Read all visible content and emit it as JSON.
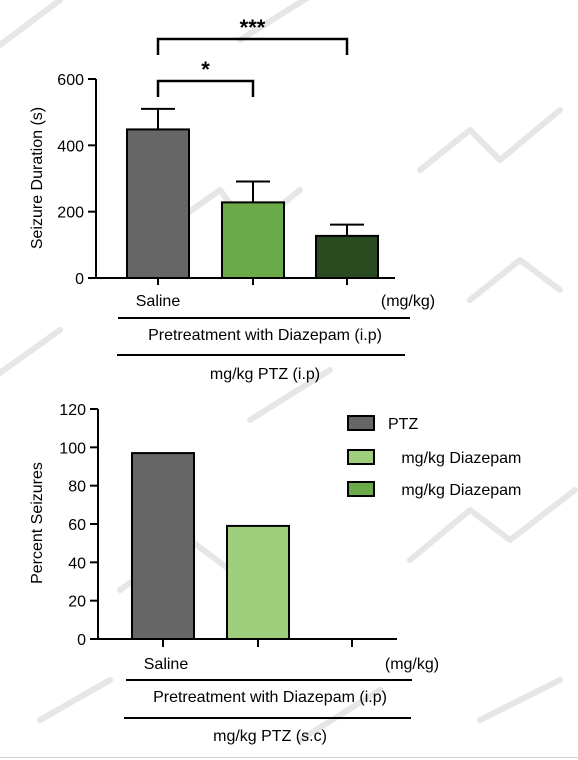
{
  "chart_data": [
    {
      "type": "bar",
      "ylabel": "Seizure Duration (s)",
      "ylim": [
        0,
        600
      ],
      "yticks": [
        0,
        200,
        400,
        600
      ],
      "categories": [
        "Saline",
        "",
        ""
      ],
      "values": [
        448,
        228,
        127
      ],
      "errors": [
        62,
        63,
        34
      ],
      "colors": [
        "#666666",
        "#6aaa48",
        "#2a4a1f"
      ],
      "category_note": "(mg/kg)",
      "group_label": "Pretreatment with Diazepam (i.p)",
      "outer_label": "mg/kg PTZ (i.p)",
      "significance": [
        {
          "from": 0,
          "to": 1,
          "label": "*"
        },
        {
          "from": 0,
          "to": 2,
          "label": "***"
        }
      ]
    },
    {
      "type": "bar",
      "ylabel": "Percent Seizures",
      "ylim": [
        0,
        120
      ],
      "yticks": [
        0,
        20,
        40,
        60,
        80,
        100,
        120
      ],
      "categories": [
        "Saline",
        "",
        ""
      ],
      "values": [
        97,
        59,
        0
      ],
      "colors": [
        "#666666",
        "#9fce7c",
        "#6aaa48"
      ],
      "category_note": "(mg/kg)",
      "group_label": "Pretreatment with Diazepam (i.p)",
      "outer_label": "mg/kg PTZ (s.c)",
      "legend": {
        "position": "top-right",
        "entries": [
          {
            "label": "PTZ",
            "color": "#666666"
          },
          {
            "label": "   mg/kg Diazepam",
            "color": "#9fce7c"
          },
          {
            "label": "   mg/kg Diazepam",
            "color": "#6aaa48"
          }
        ]
      }
    }
  ]
}
